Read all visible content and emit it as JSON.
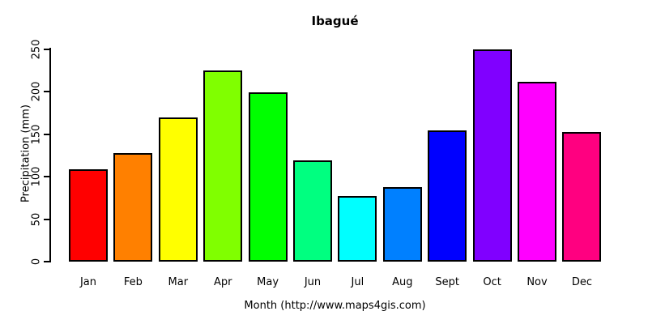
{
  "title": "Ibagué",
  "y_axis": {
    "label": "Precipitation (mm)",
    "ticks": [
      0,
      50,
      100,
      150,
      200,
      250
    ]
  },
  "x_axis": {
    "label": "Month (http://www.maps4gis.com)"
  },
  "chart_data": {
    "type": "bar",
    "title": "Ibagué",
    "xlabel": "Month (http://www.maps4gis.com)",
    "ylabel": "Precipitation (mm)",
    "categories": [
      "Jan",
      "Feb",
      "Mar",
      "Apr",
      "May",
      "Jun",
      "Jul",
      "Aug",
      "Sept",
      "Oct",
      "Nov",
      "Dec"
    ],
    "values": [
      109,
      128,
      170,
      225,
      199,
      119,
      77,
      88,
      154,
      250,
      211,
      152
    ],
    "colors": [
      "#FF0000",
      "#FF8000",
      "#FFFF00",
      "#80FF00",
      "#00FF00",
      "#00FF80",
      "#00FFFF",
      "#0080FF",
      "#0000FF",
      "#8000FF",
      "#FF00FF",
      "#FF0080"
    ],
    "bar_border_color": "#000000",
    "ylim": [
      0,
      250
    ],
    "grid": false,
    "legend": "none"
  }
}
